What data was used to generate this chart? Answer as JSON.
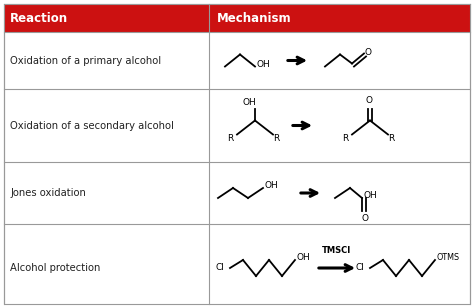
{
  "header_bg": "#cc1111",
  "header_text_color": "#ffffff",
  "col1_header": "Reaction",
  "col2_header": "Mechanism",
  "rows": [
    "Oxidation of a primary alcohol",
    "Oxidation of a secondary alcohol",
    "Jones oxidation",
    "Alcohol protection"
  ],
  "border_color": "#999999",
  "text_color": "#222222",
  "bg_color": "#ffffff",
  "col_split": 0.44,
  "header_fontsize": 8.5,
  "row_fontsize": 7.2
}
